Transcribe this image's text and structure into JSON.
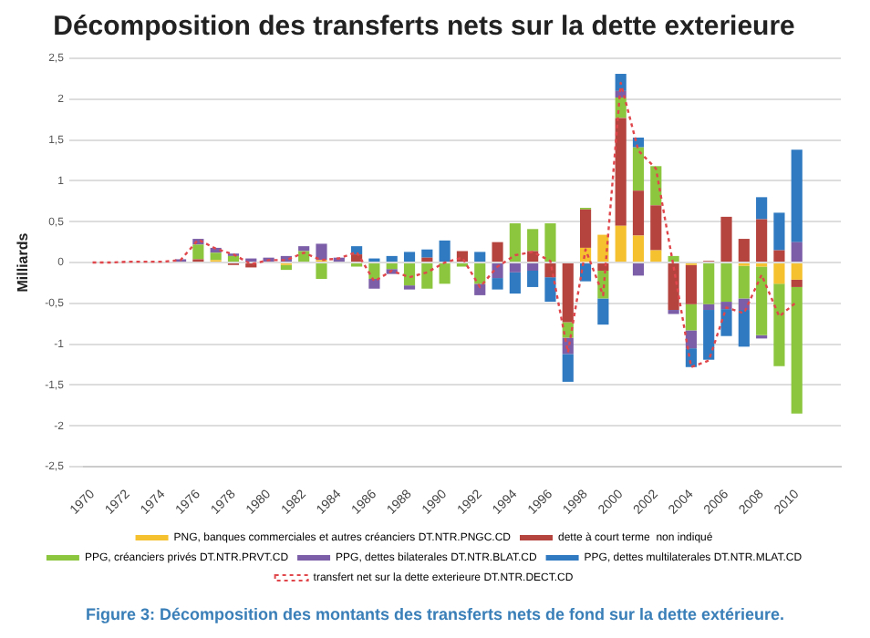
{
  "chart_data": {
    "type": "bar",
    "stacked": true,
    "title": "Décomposition des transferts nets sur la dette exterieure",
    "ylabel": "Milliards",
    "categories": [
      "1970",
      null,
      "1972",
      null,
      "1974",
      null,
      "1976",
      null,
      "1978",
      null,
      "1980",
      null,
      "1982",
      null,
      "1984",
      null,
      "1986",
      null,
      "1988",
      null,
      "1990",
      null,
      "1992",
      null,
      "1994",
      null,
      "1996",
      null,
      "1998",
      null,
      "2000",
      null,
      "2002",
      null,
      "2004",
      null,
      "2006",
      null,
      "2008",
      null,
      "2010",
      null,
      null
    ],
    "series": [
      {
        "name": "PNG, banques commerciales et autres créanciers DT.NTR.PNGC.CD",
        "color": "#f5c12e",
        "values": [
          0,
          0,
          0,
          0,
          0,
          0,
          0,
          0.03,
          0,
          0,
          0,
          -0.03,
          0,
          0.03,
          0,
          0,
          0,
          0,
          0,
          0,
          0,
          0,
          0,
          0,
          0,
          0,
          0,
          0,
          0.18,
          0.34,
          0.45,
          0.33,
          0.15,
          0,
          -0.03,
          0,
          0,
          -0.04,
          -0.05,
          -0.26,
          -0.21,
          null,
          null
        ]
      },
      {
        "name": "dette à court terme  non indiqué",
        "color": "#b5443f",
        "values": [
          0,
          0,
          0,
          0,
          0,
          0,
          0.04,
          0,
          -0.03,
          -0.06,
          0,
          0,
          0,
          0,
          0,
          0.1,
          0,
          0,
          0,
          0.06,
          0,
          0.14,
          0,
          0.25,
          0,
          0.14,
          -0.18,
          -0.73,
          0.47,
          -0.1,
          1.32,
          0.55,
          0.55,
          -0.58,
          -0.48,
          0.02,
          0.56,
          0.29,
          0.53,
          0.15,
          -0.09,
          null,
          null
        ]
      },
      {
        "name": "PPG, créanciers privés DT.NTR.PRVT.CD",
        "color": "#8cc63f",
        "values": [
          0,
          0,
          0,
          0,
          0,
          0,
          0.18,
          0.09,
          0.08,
          0,
          0,
          -0.06,
          0.14,
          -0.2,
          0,
          -0.05,
          -0.2,
          -0.08,
          -0.28,
          -0.32,
          -0.26,
          -0.05,
          -0.26,
          0,
          0.48,
          0.27,
          0.48,
          -0.19,
          0.02,
          -0.34,
          0.25,
          0.53,
          0.48,
          0.08,
          -0.32,
          -0.51,
          -0.48,
          -0.4,
          -0.84,
          -1.01,
          -1.55,
          null,
          null
        ]
      },
      {
        "name": "PPG, dettes bilaterales DT.NTR.BLAT.CD",
        "color": "#7b5ea7",
        "values": [
          0,
          0,
          0,
          0,
          0,
          0.04,
          0.07,
          0.06,
          0.03,
          0.05,
          0.06,
          0.08,
          0.06,
          0.2,
          0.06,
          0,
          -0.12,
          -0.06,
          -0.05,
          0,
          0,
          0,
          -0.14,
          -0.19,
          -0.12,
          -0.1,
          0,
          -0.2,
          0,
          0,
          0.08,
          -0.16,
          0,
          -0.05,
          -0.22,
          -0.07,
          -0.09,
          -0.14,
          -0.04,
          0,
          0.25,
          null,
          null
        ]
      },
      {
        "name": "PPG, dettes multilaterales DT.NTR.MLAT.CD",
        "color": "#2f7ac0",
        "values": [
          0,
          0,
          0,
          0,
          0,
          0,
          0,
          0,
          0,
          0,
          0,
          0,
          0,
          0,
          0,
          0.1,
          0.05,
          0.08,
          0.13,
          0.1,
          0.27,
          0,
          0.13,
          -0.14,
          -0.26,
          -0.2,
          -0.3,
          -0.34,
          -0.23,
          -0.32,
          0.21,
          0.12,
          0,
          0,
          -0.23,
          -0.61,
          -0.33,
          -0.45,
          0.27,
          0.46,
          1.13,
          null,
          null
        ]
      },
      {
        "name": "transfert net sur la dette exterieure DT.NTR.DECT.CD",
        "type": "line",
        "line_style": "dotted",
        "color": "#e0474c",
        "values": [
          0,
          0,
          0.01,
          0.01,
          0.01,
          0.03,
          0.28,
          0.17,
          0.1,
          -0.02,
          0.03,
          0.03,
          0.12,
          0.03,
          0.05,
          0.13,
          -0.23,
          -0.1,
          -0.18,
          -0.12,
          0,
          0.06,
          -0.3,
          -0.05,
          0.09,
          0.13,
          0.02,
          -1.1,
          0.16,
          -0.4,
          2.2,
          1.37,
          1.15,
          -0.05,
          -1.28,
          -1.2,
          -0.55,
          -0.62,
          -0.15,
          -0.66,
          -0.48,
          null,
          null
        ]
      }
    ],
    "ylim": [
      -2.5,
      2.5
    ],
    "yticks": [
      {
        "value": -2.5,
        "label": "-2,5"
      },
      -2,
      {
        "value": -1.5,
        "label": "-1,5"
      },
      -1,
      {
        "value": -0.5,
        "label": "-0,5"
      },
      0,
      {
        "value": 0.5,
        "label": "0,5"
      },
      1,
      {
        "value": 1.5,
        "label": "1,5"
      },
      2,
      {
        "value": 2.5,
        "label": "2,5"
      }
    ],
    "grid": "y",
    "legend": "bottom",
    "marker": "none",
    "annotations": [
      "Figure 3: Décomposition des montants des transferts nets de fond sur la dette extérieure."
    ]
  }
}
